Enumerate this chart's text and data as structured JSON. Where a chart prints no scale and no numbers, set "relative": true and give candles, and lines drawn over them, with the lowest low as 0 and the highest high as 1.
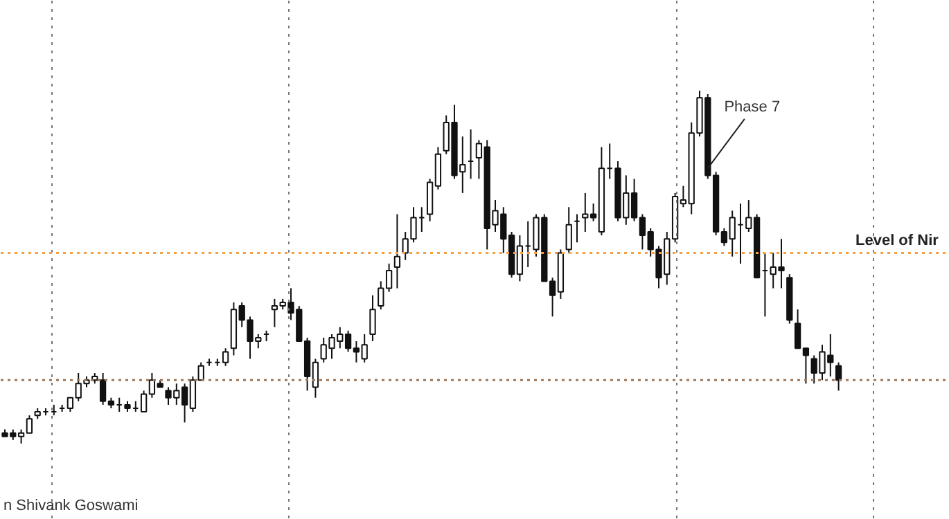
{
  "chart_data": {
    "type": "candlestick",
    "relative": true,
    "categories": [
      null,
      null,
      null,
      null,
      null,
      null,
      null,
      null,
      null,
      null,
      null,
      null,
      null,
      null,
      null,
      null,
      null,
      null,
      null,
      null,
      null,
      null,
      null,
      null,
      null,
      null,
      null,
      null,
      null,
      null,
      null,
      null,
      null,
      null,
      null,
      null,
      null,
      null,
      null,
      null,
      null,
      null,
      null,
      null,
      null,
      null,
      null,
      null,
      null,
      null,
      null,
      null,
      null,
      null,
      null,
      null,
      null,
      null,
      null,
      null,
      null,
      null,
      null,
      null,
      null,
      null,
      null,
      null,
      null,
      null,
      null,
      null,
      null,
      null,
      null,
      null,
      null,
      null,
      null,
      null,
      null,
      null,
      null,
      null,
      null,
      null,
      null,
      null,
      null,
      null,
      null,
      null,
      null,
      null,
      null,
      null,
      null,
      null,
      null,
      null,
      null,
      null,
      null
    ],
    "ohlc": [
      [
        0.03,
        0.04,
        0.02,
        0.02
      ],
      [
        0.03,
        0.04,
        0.01,
        0.02
      ],
      [
        0.02,
        0.04,
        0.0,
        0.03
      ],
      [
        0.03,
        0.08,
        0.03,
        0.07
      ],
      [
        0.08,
        0.1,
        0.07,
        0.09
      ],
      [
        0.09,
        0.1,
        0.08,
        0.09
      ],
      [
        0.09,
        0.11,
        0.08,
        0.09
      ],
      [
        0.1,
        0.11,
        0.09,
        0.1
      ],
      [
        0.1,
        0.13,
        0.09,
        0.13
      ],
      [
        0.13,
        0.2,
        0.12,
        0.17
      ],
      [
        0.17,
        0.19,
        0.16,
        0.18
      ],
      [
        0.18,
        0.2,
        0.17,
        0.19
      ],
      [
        0.18,
        0.2,
        0.11,
        0.12
      ],
      [
        0.12,
        0.13,
        0.1,
        0.11
      ],
      [
        0.11,
        0.13,
        0.09,
        0.11
      ],
      [
        0.11,
        0.12,
        0.09,
        0.1
      ],
      [
        0.1,
        0.12,
        0.09,
        0.1
      ],
      [
        0.09,
        0.15,
        0.09,
        0.14
      ],
      [
        0.14,
        0.2,
        0.13,
        0.18
      ],
      [
        0.17,
        0.18,
        0.16,
        0.16
      ],
      [
        0.15,
        0.16,
        0.11,
        0.13
      ],
      [
        0.13,
        0.17,
        0.11,
        0.15
      ],
      [
        0.16,
        0.17,
        0.06,
        0.11
      ],
      [
        0.1,
        0.19,
        0.09,
        0.18
      ],
      [
        0.18,
        0.23,
        0.18,
        0.22
      ],
      [
        0.23,
        0.24,
        0.22,
        0.23
      ],
      [
        0.23,
        0.24,
        0.22,
        0.23
      ],
      [
        0.23,
        0.27,
        0.22,
        0.26
      ],
      [
        0.27,
        0.4,
        0.25,
        0.38
      ],
      [
        0.39,
        0.4,
        0.33,
        0.35
      ],
      [
        0.35,
        0.36,
        0.24,
        0.29
      ],
      [
        0.29,
        0.31,
        0.27,
        0.3
      ],
      [
        0.31,
        0.32,
        0.29,
        0.31
      ],
      [
        0.38,
        0.41,
        0.33,
        0.39
      ],
      [
        0.39,
        0.41,
        0.38,
        0.4
      ],
      [
        0.4,
        0.44,
        0.35,
        0.37
      ],
      [
        0.38,
        0.39,
        0.29,
        0.29
      ],
      [
        0.29,
        0.3,
        0.15,
        0.19
      ],
      [
        0.16,
        0.24,
        0.13,
        0.23
      ],
      [
        0.24,
        0.3,
        0.23,
        0.28
      ],
      [
        0.27,
        0.31,
        0.24,
        0.3
      ],
      [
        0.29,
        0.33,
        0.27,
        0.31
      ],
      [
        0.31,
        0.32,
        0.26,
        0.27
      ],
      [
        0.27,
        0.29,
        0.23,
        0.26
      ],
      [
        0.24,
        0.31,
        0.23,
        0.28
      ],
      [
        0.31,
        0.42,
        0.29,
        0.38
      ],
      [
        0.39,
        0.46,
        0.38,
        0.44
      ],
      [
        0.44,
        0.51,
        0.43,
        0.49
      ],
      [
        0.5,
        0.65,
        0.44,
        0.53
      ],
      [
        0.54,
        0.6,
        0.52,
        0.58
      ],
      [
        0.58,
        0.67,
        0.57,
        0.64
      ],
      [
        0.64,
        0.67,
        0.6,
        0.64
      ],
      [
        0.65,
        0.75,
        0.63,
        0.74
      ],
      [
        0.73,
        0.84,
        0.72,
        0.82
      ],
      [
        0.83,
        0.93,
        0.82,
        0.91
      ],
      [
        0.91,
        0.96,
        0.75,
        0.76
      ],
      [
        0.77,
        0.87,
        0.71,
        0.79
      ],
      [
        0.8,
        0.89,
        0.75,
        0.8
      ],
      [
        0.81,
        0.86,
        0.75,
        0.85
      ],
      [
        0.84,
        0.86,
        0.55,
        0.61
      ],
      [
        0.62,
        0.69,
        0.6,
        0.66
      ],
      [
        0.65,
        0.67,
        0.54,
        0.58
      ],
      [
        0.59,
        0.6,
        0.47,
        0.48
      ],
      [
        0.48,
        0.59,
        0.46,
        0.56
      ],
      [
        0.56,
        0.63,
        0.5,
        0.56
      ],
      [
        0.55,
        0.65,
        0.53,
        0.64
      ],
      [
        0.64,
        0.65,
        0.46,
        0.46
      ],
      [
        0.46,
        0.47,
        0.36,
        0.42
      ],
      [
        0.43,
        0.55,
        0.41,
        0.54
      ],
      [
        0.55,
        0.67,
        0.54,
        0.62
      ],
      [
        0.63,
        0.65,
        0.57,
        0.63
      ],
      [
        0.64,
        0.71,
        0.6,
        0.65
      ],
      [
        0.65,
        0.68,
        0.63,
        0.64
      ],
      [
        0.6,
        0.84,
        0.59,
        0.78
      ],
      [
        0.78,
        0.85,
        0.75,
        0.78
      ],
      [
        0.78,
        0.8,
        0.63,
        0.64
      ],
      [
        0.64,
        0.76,
        0.62,
        0.71
      ],
      [
        0.71,
        0.75,
        0.63,
        0.64
      ],
      [
        0.64,
        0.65,
        0.55,
        0.59
      ],
      [
        0.6,
        0.61,
        0.53,
        0.55
      ],
      [
        0.55,
        0.56,
        0.44,
        0.47
      ],
      [
        0.48,
        0.6,
        0.45,
        0.58
      ],
      [
        0.58,
        0.71,
        0.57,
        0.7
      ],
      [
        0.68,
        0.73,
        0.67,
        0.69
      ],
      [
        0.68,
        0.91,
        0.65,
        0.88
      ],
      [
        0.88,
        1.0,
        0.87,
        0.98
      ],
      [
        0.98,
        0.99,
        0.75,
        0.76
      ],
      [
        0.76,
        0.77,
        0.59,
        0.6
      ],
      [
        0.6,
        0.61,
        0.56,
        0.57
      ],
      [
        0.58,
        0.66,
        0.53,
        0.64
      ],
      [
        0.62,
        0.68,
        0.51,
        0.62
      ],
      [
        0.61,
        0.69,
        0.6,
        0.64
      ],
      [
        0.64,
        0.65,
        0.47,
        0.47
      ],
      [
        0.49,
        0.54,
        0.36,
        0.49
      ],
      [
        0.48,
        0.54,
        0.44,
        0.5
      ],
      [
        0.5,
        0.58,
        0.44,
        0.49
      ],
      [
        0.47,
        0.48,
        0.34,
        0.35
      ],
      [
        0.34,
        0.38,
        0.27,
        0.27
      ],
      [
        0.27,
        0.27,
        0.17,
        0.25
      ],
      [
        0.24,
        0.25,
        0.17,
        0.2
      ],
      [
        0.2,
        0.28,
        0.18,
        0.26
      ],
      [
        0.25,
        0.31,
        0.19,
        0.23
      ],
      [
        0.22,
        0.23,
        0.15,
        0.18
      ]
    ],
    "ref_lines": [
      {
        "axis": "y",
        "value": 0.54,
        "label": "Level of Nir",
        "color": "#f5a142",
        "line_style": "dotted"
      },
      {
        "axis": "y",
        "value": 0.18,
        "color": "#a0785a",
        "line_style": "dotted"
      }
    ],
    "annotations": [
      "Phase 7",
      "n Shivank Goswami"
    ]
  }
}
